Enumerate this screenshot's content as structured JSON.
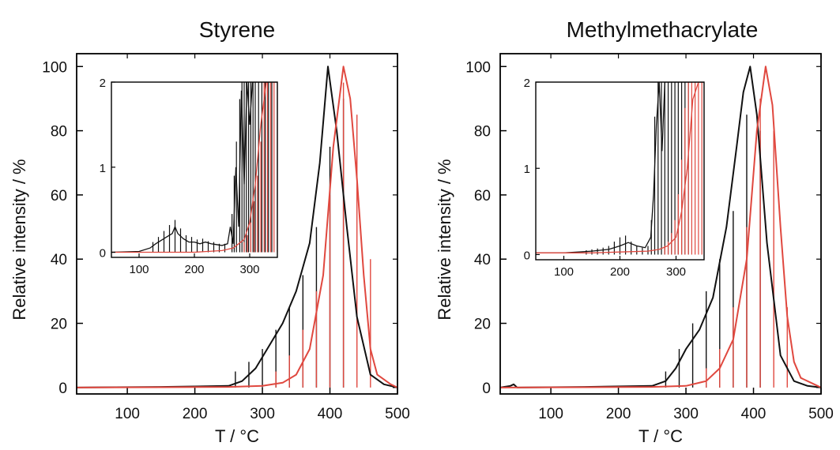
{
  "colors": {
    "black": "#111111",
    "red": "#e0483f",
    "axis": "#000000"
  },
  "chart_data": [
    {
      "type": "line",
      "title": "Styrene",
      "xlabel": "T / °C",
      "ylabel": "Relative intensity / %",
      "xlim": [
        25,
        500
      ],
      "ylim": [
        -2,
        104
      ],
      "xticks": [
        100,
        200,
        300,
        400,
        500
      ],
      "yticks": [
        0,
        20,
        40,
        60,
        80,
        100
      ],
      "series": [
        {
          "color": "black",
          "x": [
            25,
            150,
            250,
            270,
            290,
            310,
            330,
            350,
            370,
            385,
            397,
            410,
            425,
            440,
            460,
            480,
            500
          ],
          "y": [
            0,
            0.2,
            0.5,
            2,
            6,
            13,
            20,
            30,
            45,
            70,
            100,
            80,
            50,
            22,
            4,
            1,
            0
          ]
        },
        {
          "color": "red",
          "x": [
            25,
            150,
            250,
            300,
            330,
            350,
            370,
            390,
            405,
            420,
            430,
            440,
            450,
            460,
            470,
            490,
            500
          ],
          "y": [
            0,
            0.1,
            0.2,
            0.5,
            1.5,
            4,
            12,
            35,
            75,
            100,
            90,
            65,
            35,
            12,
            4,
            1,
            0
          ]
        }
      ],
      "spike_envelopes": [
        {
          "color": "black",
          "x": [
            260,
            280,
            300,
            320,
            340,
            360,
            380,
            400,
            420
          ],
          "y": [
            5,
            8,
            12,
            18,
            25,
            35,
            50,
            75,
            90
          ]
        },
        {
          "color": "red",
          "x": [
            320,
            340,
            360,
            380,
            400,
            420,
            440,
            460
          ],
          "y": [
            5,
            10,
            18,
            30,
            60,
            95,
            85,
            40
          ]
        }
      ],
      "inset": {
        "xlim": [
          50,
          350
        ],
        "ylim": [
          -0.06,
          2
        ],
        "xticks": [
          100,
          200,
          300
        ],
        "yticks": [
          0,
          1,
          2
        ],
        "series": [
          {
            "color": "black",
            "x": [
              50,
              100,
              120,
              130,
              140,
              150,
              160,
              165,
              170,
              180,
              190,
              200,
              210,
              220,
              230,
              240,
              250,
              260,
              265,
              270,
              275,
              280,
              285,
              290,
              295,
              300,
              305,
              310,
              320,
              330,
              340,
              350
            ],
            "y": [
              0,
              0.01,
              0.05,
              0.1,
              0.14,
              0.18,
              0.22,
              0.3,
              0.22,
              0.16,
              0.12,
              0.12,
              0.1,
              0.12,
              0.1,
              0.09,
              0.08,
              0.1,
              0.3,
              0.1,
              1.0,
              0.3,
              1.9,
              0.8,
              2,
              1.5,
              2,
              2,
              2,
              2,
              2,
              2
            ]
          },
          {
            "color": "red",
            "x": [
              50,
              100,
              150,
              200,
              250,
              270,
              280,
              290,
              300,
              310,
              320,
              330,
              340,
              350
            ],
            "y": [
              0,
              0,
              0,
              0,
              0.02,
              0.05,
              0.1,
              0.15,
              0.35,
              0.8,
              1.5,
              2,
              2,
              2
            ]
          }
        ],
        "spikes": [
          {
            "color": "black",
            "x": [
              125,
              135,
              145,
              155,
              165,
              175,
              185,
              195,
              205,
              215,
              225,
              235,
              245,
              255,
              268,
              272,
              276,
              282,
              286,
              290,
              294,
              298,
              302,
              306,
              310,
              316,
              322,
              328,
              334,
              340
            ],
            "y": [
              0.12,
              0.18,
              0.25,
              0.32,
              0.38,
              0.28,
              0.2,
              0.18,
              0.15,
              0.16,
              0.13,
              0.12,
              0.1,
              0.1,
              0.45,
              0.9,
              1.3,
              1.8,
              2,
              2,
              2,
              2,
              2,
              2,
              2,
              2,
              2,
              2,
              2,
              2
            ]
          },
          {
            "color": "red",
            "x": [
              290,
              296,
              302,
              308,
              314,
              320,
              326,
              332,
              338,
              344,
              350
            ],
            "y": [
              0.12,
              0.2,
              0.35,
              0.6,
              0.9,
              1.3,
              2,
              2,
              2,
              2,
              2
            ]
          }
        ]
      }
    },
    {
      "type": "line",
      "title": "Methylmethacrylate",
      "xlabel": "T / °C",
      "ylabel": "Relative intensity / %",
      "xlim": [
        25,
        500
      ],
      "ylim": [
        -2,
        104
      ],
      "xticks": [
        100,
        200,
        300,
        400,
        500
      ],
      "yticks": [
        0,
        20,
        40,
        60,
        80,
        100
      ],
      "series": [
        {
          "color": "black",
          "x": [
            25,
            40,
            45,
            50,
            150,
            250,
            270,
            285,
            300,
            320,
            340,
            360,
            375,
            385,
            395,
            405,
            420,
            440,
            460,
            480,
            500
          ],
          "y": [
            0,
            0.5,
            1,
            0,
            0.2,
            0.5,
            2,
            6,
            12,
            18,
            28,
            50,
            75,
            92,
            100,
            85,
            45,
            10,
            2,
            0.5,
            0
          ]
        },
        {
          "color": "red",
          "x": [
            25,
            150,
            250,
            300,
            330,
            350,
            370,
            390,
            405,
            418,
            428,
            440,
            450,
            460,
            470,
            490,
            500
          ],
          "y": [
            0,
            0.1,
            0.2,
            0.5,
            2,
            6,
            15,
            40,
            80,
            100,
            88,
            50,
            22,
            8,
            3,
            1,
            0
          ]
        }
      ],
      "spike_envelopes": [
        {
          "color": "black",
          "x": [
            270,
            290,
            310,
            330,
            350,
            370,
            390,
            410
          ],
          "y": [
            5,
            12,
            20,
            30,
            40,
            55,
            85,
            80
          ]
        },
        {
          "color": "red",
          "x": [
            330,
            350,
            370,
            390,
            410,
            430,
            450
          ],
          "y": [
            6,
            12,
            25,
            50,
            90,
            80,
            25
          ]
        }
      ],
      "inset": {
        "xlim": [
          50,
          350
        ],
        "ylim": [
          -0.06,
          2
        ],
        "xticks": [
          100,
          200,
          300
        ],
        "yticks": [
          0,
          1,
          2
        ],
        "series": [
          {
            "color": "black",
            "x": [
              50,
              100,
              150,
              180,
              200,
              215,
              230,
              245,
              255,
              260,
              265,
              270,
              275,
              280,
              285,
              290,
              300,
              320,
              350
            ],
            "y": [
              0.02,
              0.02,
              0.04,
              0.06,
              0.1,
              0.14,
              0.1,
              0.08,
              0.2,
              0.7,
              1.5,
              2,
              1.2,
              2,
              2,
              2,
              2,
              2,
              2
            ]
          },
          {
            "color": "red",
            "x": [
              50,
              100,
              150,
              200,
              250,
              270,
              285,
              300,
              310,
              320,
              330,
              340,
              350
            ],
            "y": [
              0.02,
              0.02,
              0.02,
              0.03,
              0.04,
              0.06,
              0.1,
              0.2,
              0.5,
              1.0,
              1.8,
              2,
              2
            ]
          }
        ],
        "spikes": [
          {
            "color": "black",
            "x": [
              140,
              150,
              160,
              170,
              180,
              190,
              200,
              210,
              220,
              230,
              240,
              250,
              256,
              262,
              268,
              274,
              280,
              286,
              292,
              298,
              304,
              310,
              316,
              322
            ],
            "y": [
              0.05,
              0.06,
              0.07,
              0.08,
              0.1,
              0.15,
              0.2,
              0.22,
              0.15,
              0.1,
              0.08,
              0.1,
              0.4,
              1.6,
              2,
              2,
              2,
              2,
              2,
              2,
              2,
              2,
              2,
              2
            ]
          },
          {
            "color": "red",
            "x": [
              280,
              286,
              292,
              298,
              304,
              310,
              316,
              322,
              328,
              334,
              340,
              346
            ],
            "y": [
              0.1,
              0.15,
              0.25,
              0.4,
              0.7,
              1.1,
              1.7,
              2,
              2,
              2,
              2,
              2
            ]
          }
        ]
      }
    }
  ]
}
